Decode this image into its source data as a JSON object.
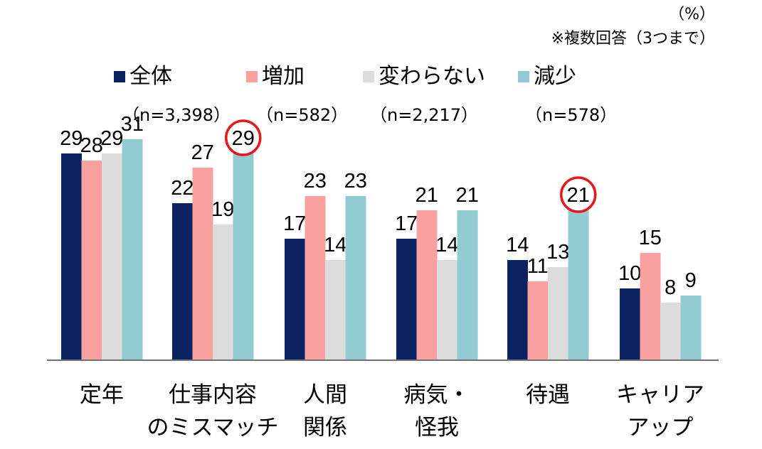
{
  "unit_label": "（%）",
  "note": "※複数回答（3つまで）",
  "colors": {
    "all": "#0b2461",
    "increase": "#f9a0a0",
    "unchanged": "#dcdcdc",
    "decrease": "#92cbd2",
    "highlight": "#e8171c",
    "axis": "#444444"
  },
  "legend": [
    {
      "name": "全体",
      "n": "（n=3,398）"
    },
    {
      "name": "増加",
      "n": "（n=582）"
    },
    {
      "name": "変わらない",
      "n": "（n=2,217）"
    },
    {
      "name": "減少",
      "n": "（n=578）"
    }
  ],
  "chart_data": {
    "type": "bar",
    "categories": [
      [
        "定年"
      ],
      [
        "仕事内容",
        "のミスマッチ"
      ],
      [
        "人間",
        "関係"
      ],
      [
        "病気・",
        "怪我"
      ],
      [
        "待遇"
      ],
      [
        "キャリア",
        "アップ"
      ]
    ],
    "series": [
      {
        "name": "全体",
        "values": [
          29,
          22,
          17,
          17,
          14,
          10
        ]
      },
      {
        "name": "増加",
        "values": [
          28,
          27,
          23,
          21,
          11,
          15
        ]
      },
      {
        "name": "変わらない",
        "values": [
          29,
          19,
          14,
          14,
          13,
          8
        ]
      },
      {
        "name": "減少",
        "values": [
          31,
          29,
          23,
          21,
          21,
          9
        ]
      }
    ],
    "highlighted": [
      {
        "category_index": 1,
        "series_index": 3
      },
      {
        "category_index": 4,
        "series_index": 3
      }
    ],
    "ylim": [
      0,
      36
    ],
    "grid": false,
    "legend_position": "top"
  }
}
